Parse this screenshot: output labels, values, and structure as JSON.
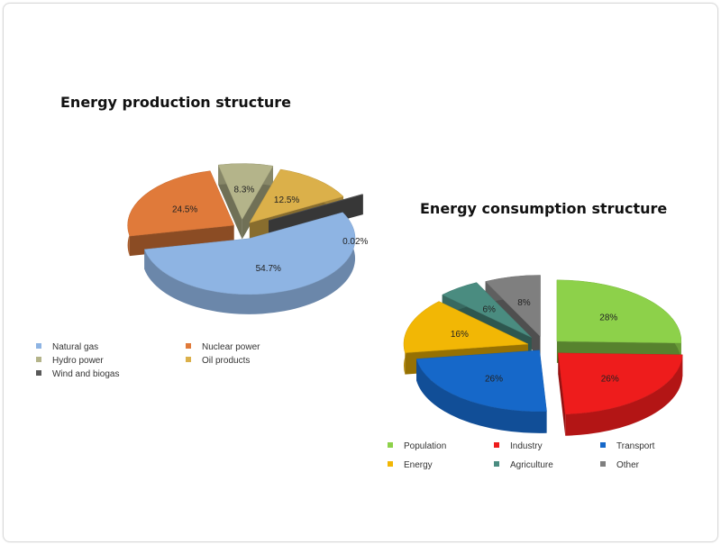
{
  "chart_data": [
    {
      "type": "pie",
      "title": "Energy production structure",
      "slices": [
        {
          "name": "Natural gas",
          "value": 54.7,
          "label": "54.7%",
          "color": "#8eb4e3"
        },
        {
          "name": "Nuclear power",
          "value": 24.5,
          "label": "24.5%",
          "color": "#e07a3a"
        },
        {
          "name": "Hydro power",
          "value": 8.3,
          "label": "8.3%",
          "color": "#b4b48a"
        },
        {
          "name": "Oil products",
          "value": 12.5,
          "label": "12.5%",
          "color": "#dbb04a"
        },
        {
          "name": "Wind and biogas",
          "value": 0.02,
          "label": "0.02%",
          "color": "#595959"
        }
      ],
      "legend_position": "bottom"
    },
    {
      "type": "pie",
      "title": "Energy consumption structure",
      "slices": [
        {
          "name": "Population",
          "value": 28,
          "label": "28%",
          "color": "#8dd14a"
        },
        {
          "name": "Industry",
          "value": 26,
          "label": "26%",
          "color": "#ee1c1c"
        },
        {
          "name": "Transport",
          "value": 26,
          "label": "26%",
          "color": "#1668c9"
        },
        {
          "name": "Energy",
          "value": 16,
          "label": "16%",
          "color": "#f2b705"
        },
        {
          "name": "Agriculture",
          "value": 6,
          "label": "6%",
          "color": "#4a8c80"
        },
        {
          "name": "Other",
          "value": 8,
          "label": "8%",
          "color": "#7f7f7f"
        }
      ],
      "legend_position": "bottom"
    }
  ]
}
